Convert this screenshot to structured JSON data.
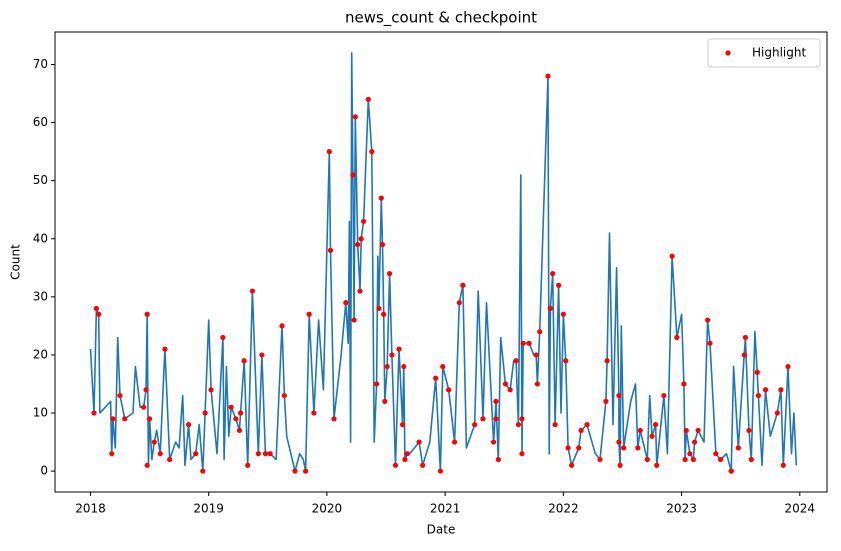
{
  "chart_data": {
    "type": "line",
    "title": "news_count & checkpoint",
    "xlabel": "Date",
    "ylabel": "Count",
    "xlim": [
      2017.7,
      2024.23
    ],
    "xticks": [
      2018,
      2019,
      2020,
      2021,
      2022,
      2023,
      2024
    ],
    "ylim": [
      -3.6,
      75.6
    ],
    "yticks": [
      0,
      10,
      20,
      30,
      40,
      50,
      60,
      70
    ],
    "legend": "upper right",
    "series": [
      {
        "type": "line",
        "color": "#1f77b4",
        "x": [
          2018.0,
          2018.03,
          2018.05,
          2018.07,
          2018.08,
          2018.17,
          2018.18,
          2018.19,
          2018.21,
          2018.23,
          2018.25,
          2018.29,
          2018.36,
          2018.38,
          2018.42,
          2018.45,
          2018.47,
          2018.48,
          2018.49,
          2018.5,
          2018.52,
          2018.54,
          2018.56,
          2018.59,
          2018.63,
          2018.67,
          2018.72,
          2018.75,
          2018.78,
          2018.8,
          2018.83,
          2018.85,
          2018.89,
          2018.92,
          2018.95,
          2018.97,
          2019.0,
          2019.02,
          2019.07,
          2019.12,
          2019.13,
          2019.15,
          2019.17,
          2019.19,
          2019.23,
          2019.26,
          2019.27,
          2019.3,
          2019.33,
          2019.37,
          2019.42,
          2019.45,
          2019.48,
          2019.52,
          2019.57,
          2019.62,
          2019.64,
          2019.66,
          2019.73,
          2019.77,
          2019.8,
          2019.82,
          2019.85,
          2019.89,
          2019.93,
          2019.97,
          2020.02,
          2020.03,
          2020.06,
          2020.12,
          2020.16,
          2020.18,
          2020.19,
          2020.2,
          2020.21,
          2020.22,
          2020.23,
          2020.24,
          2020.26,
          2020.28,
          2020.29,
          2020.31,
          2020.35,
          2020.38,
          2020.4,
          2020.42,
          2020.43,
          2020.44,
          2020.46,
          2020.47,
          2020.48,
          2020.49,
          2020.51,
          2020.53,
          2020.55,
          2020.58,
          2020.61,
          2020.64,
          2020.65,
          2020.66,
          2020.68,
          2020.7,
          2020.78,
          2020.81,
          2020.87,
          2020.92,
          2020.96,
          2020.98,
          2021.03,
          2021.08,
          2021.12,
          2021.15,
          2021.18,
          2021.25,
          2021.28,
          2021.32,
          2021.35,
          2021.41,
          2021.43,
          2021.45,
          2021.47,
          2021.51,
          2021.55,
          2021.58,
          2021.6,
          2021.62,
          2021.64,
          2021.65,
          2021.66,
          2021.71,
          2021.75,
          2021.77,
          2021.78,
          2021.8,
          2021.87,
          2021.88,
          2021.89,
          2021.91,
          2021.93,
          2021.96,
          2021.98,
          2022.0,
          2022.02,
          2022.04,
          2022.07,
          2022.13,
          2022.15,
          2022.2,
          2022.27,
          2022.31,
          2022.36,
          2022.37,
          2022.39,
          2022.42,
          2022.45,
          2022.47,
          2022.47,
          2022.48,
          2022.49,
          2022.51,
          2022.57,
          2022.61,
          2022.63,
          2022.65,
          2022.71,
          2022.73,
          2022.75,
          2022.78,
          2022.79,
          2022.85,
          2022.88,
          2022.92,
          2022.96,
          2023.0,
          2023.02,
          2023.03,
          2023.04,
          2023.07,
          2023.1,
          2023.11,
          2023.14,
          2023.19,
          2023.22,
          2023.24,
          2023.29,
          2023.33,
          2023.38,
          2023.42,
          2023.44,
          2023.48,
          2023.53,
          2023.54,
          2023.57,
          2023.59,
          2023.62,
          2023.64,
          2023.65,
          2023.68,
          2023.71,
          2023.75,
          2023.81,
          2023.84,
          2023.86,
          2023.9,
          2023.93,
          2023.95,
          2023.97
        ],
        "values": [
          21,
          10,
          28,
          27,
          10,
          12,
          3,
          9,
          4,
          23,
          13,
          9,
          10,
          18,
          11,
          11,
          14,
          27,
          1,
          9,
          2,
          5,
          7,
          3,
          21,
          2,
          5,
          4,
          13,
          1,
          8,
          2,
          3,
          8,
          0,
          10,
          26,
          14,
          3,
          23,
          2,
          18,
          6,
          11,
          9,
          7,
          10,
          19,
          1,
          31,
          3,
          20,
          3,
          3,
          2,
          25,
          13,
          6,
          0,
          3,
          2,
          0,
          27,
          10,
          26,
          14,
          55,
          38,
          9,
          20,
          29,
          22,
          43,
          5,
          72,
          51,
          26,
          61,
          39,
          31,
          40,
          43,
          64,
          55,
          5,
          15,
          37,
          28,
          47,
          39,
          27,
          12,
          18,
          34,
          20,
          1,
          21,
          8,
          18,
          2,
          3,
          3,
          5,
          1,
          5,
          16,
          0,
          18,
          14,
          5,
          29,
          32,
          4,
          8,
          31,
          9,
          29,
          5,
          12,
          2,
          23,
          15,
          14,
          19,
          19,
          8,
          51,
          3,
          22,
          22,
          20,
          20,
          15,
          24,
          68,
          3,
          28,
          34,
          8,
          32,
          10,
          27,
          19,
          4,
          1,
          4,
          7,
          8,
          3,
          2,
          12,
          19,
          41,
          8,
          35,
          13,
          5,
          1,
          25,
          4,
          12,
          15,
          4,
          7,
          2,
          13,
          6,
          8,
          1,
          13,
          3,
          37,
          23,
          27,
          15,
          2,
          7,
          3,
          2,
          5,
          7,
          5,
          26,
          22,
          3,
          2,
          3,
          0,
          18,
          4,
          20,
          23,
          7,
          2,
          24,
          17,
          13,
          1,
          14,
          6,
          10,
          14,
          1,
          18,
          3,
          10,
          1
        ]
      },
      {
        "type": "scatter",
        "name": "Highlight",
        "color": "#ff0000",
        "x": [
          2018.03,
          2018.05,
          2018.07,
          2018.18,
          2018.19,
          2018.25,
          2018.29,
          2018.45,
          2018.47,
          2018.48,
          2018.48,
          2018.5,
          2018.54,
          2018.59,
          2018.63,
          2018.67,
          2018.83,
          2018.89,
          2018.95,
          2018.97,
          2019.02,
          2019.12,
          2019.19,
          2019.23,
          2019.26,
          2019.27,
          2019.3,
          2019.33,
          2019.37,
          2019.42,
          2019.45,
          2019.48,
          2019.52,
          2019.62,
          2019.64,
          2019.73,
          2019.82,
          2019.85,
          2019.89,
          2020.02,
          2020.03,
          2020.06,
          2020.16,
          2020.22,
          2020.24,
          2020.23,
          2020.26,
          2020.28,
          2020.29,
          2020.31,
          2020.35,
          2020.38,
          2020.42,
          2020.44,
          2020.46,
          2020.47,
          2020.48,
          2020.49,
          2020.51,
          2020.53,
          2020.55,
          2020.58,
          2020.61,
          2020.64,
          2020.65,
          2020.66,
          2020.68,
          2020.78,
          2020.81,
          2020.92,
          2020.96,
          2020.98,
          2021.03,
          2021.08,
          2021.12,
          2021.15,
          2021.25,
          2021.32,
          2021.41,
          2021.43,
          2021.43,
          2021.45,
          2021.51,
          2021.55,
          2021.6,
          2021.62,
          2021.65,
          2021.65,
          2021.66,
          2021.71,
          2021.77,
          2021.78,
          2021.8,
          2021.87,
          2021.89,
          2021.91,
          2021.93,
          2021.96,
          2022.0,
          2022.02,
          2022.04,
          2022.07,
          2022.13,
          2022.15,
          2022.2,
          2022.31,
          2022.36,
          2022.37,
          2022.47,
          2022.47,
          2022.48,
          2022.51,
          2022.63,
          2022.65,
          2022.71,
          2022.75,
          2022.78,
          2022.79,
          2022.85,
          2022.92,
          2022.96,
          2023.02,
          2023.03,
          2023.04,
          2023.07,
          2023.1,
          2023.11,
          2023.14,
          2023.22,
          2023.24,
          2023.29,
          2023.33,
          2023.42,
          2023.42,
          2023.48,
          2023.53,
          2023.54,
          2023.57,
          2023.59,
          2023.64,
          2023.65,
          2023.71,
          2023.81,
          2023.84,
          2023.86,
          2023.9
        ],
        "values": [
          10,
          28,
          27,
          3,
          9,
          13,
          9,
          11,
          14,
          27,
          1,
          9,
          5,
          3,
          21,
          2,
          8,
          3,
          0,
          10,
          14,
          23,
          11,
          9,
          7,
          10,
          19,
          1,
          31,
          3,
          20,
          3,
          3,
          25,
          13,
          0,
          0,
          27,
          10,
          55,
          38,
          9,
          29,
          51,
          61,
          26,
          39,
          31,
          40,
          43,
          64,
          55,
          15,
          28,
          47,
          39,
          27,
          12,
          18,
          34,
          20,
          1,
          21,
          8,
          18,
          2,
          3,
          5,
          1,
          16,
          0,
          18,
          14,
          5,
          29,
          32,
          8,
          9,
          5,
          12,
          9,
          2,
          15,
          14,
          19,
          8,
          3,
          9,
          22,
          22,
          20,
          15,
          24,
          68,
          28,
          34,
          8,
          32,
          27,
          19,
          4,
          1,
          4,
          7,
          8,
          2,
          12,
          19,
          13,
          5,
          1,
          4,
          4,
          7,
          2,
          6,
          8,
          1,
          13,
          37,
          23,
          15,
          2,
          7,
          3,
          2,
          5,
          7,
          26,
          22,
          3,
          2,
          0,
          0,
          4,
          20,
          23,
          7,
          2,
          17,
          13,
          14,
          10,
          14,
          1,
          18
        ]
      }
    ]
  }
}
